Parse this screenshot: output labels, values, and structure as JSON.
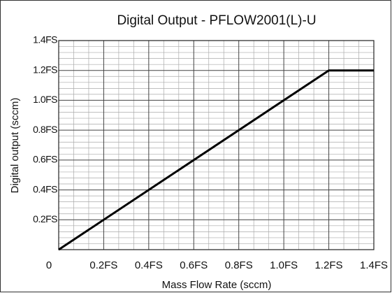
{
  "chart_data": {
    "type": "line",
    "title": "Digital Output - PFLOW2001(L)-U",
    "x_label": "Mass Flow Rate (sccm)",
    "y_label": "Digital output (sccm)",
    "x": [
      0,
      1.2,
      1.4
    ],
    "series": [
      {
        "name": "Digital output",
        "color": "#000000",
        "values": [
          0,
          1.2,
          1.2
        ]
      }
    ],
    "xlim": [
      0,
      1.4
    ],
    "ylim": [
      0,
      1.4
    ],
    "xticks": [
      0,
      {
        "value": 0.2,
        "label": "0.2FS"
      },
      {
        "value": 0.4,
        "label": "0.4FS"
      },
      {
        "value": 0.6,
        "label": "0.6FS"
      },
      {
        "value": 0.8,
        "label": "0.8FS"
      },
      {
        "value": 1.0,
        "label": "1.0FS"
      },
      {
        "value": 1.2,
        "label": "1.2FS"
      },
      {
        "value": 1.4,
        "label": "1.4FS"
      }
    ],
    "yticks": [
      {
        "value": 0.2,
        "label": "0.2FS"
      },
      {
        "value": 0.4,
        "label": "0.4FS"
      },
      {
        "value": 0.6,
        "label": "0.6FS"
      },
      {
        "value": 0.8,
        "label": "0.8FS"
      },
      {
        "value": 1.0,
        "label": "1.0FS"
      },
      {
        "value": 1.2,
        "label": "1.2FS"
      },
      {
        "value": 1.4,
        "label": "1.4FS"
      }
    ],
    "grid": true
  }
}
